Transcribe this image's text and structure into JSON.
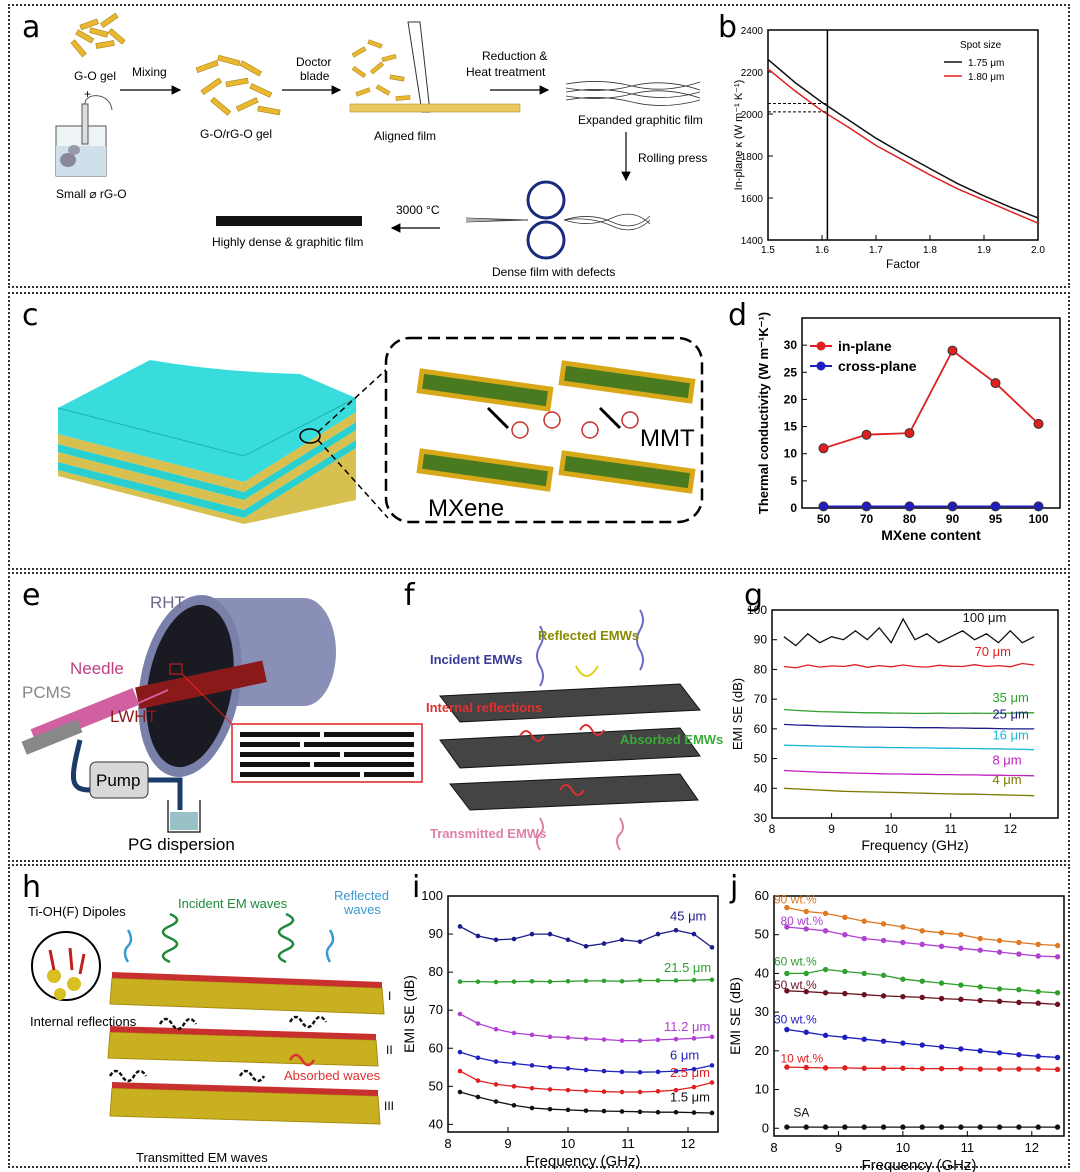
{
  "panels": {
    "a": {
      "label": "a",
      "go_gel": "G-O gel",
      "plus": "+",
      "small_rgo": "Small ⌀ rG-O",
      "mixing": "Mixing",
      "gorgo_gel": "G-O/rG-O gel",
      "doctor_blade_1": "Doctor",
      "doctor_blade_2": "blade",
      "aligned_film": "Aligned film",
      "reduction_1": "Reduction &",
      "reduction_2": "Heat treatment",
      "expanded_film": "Expanded graphitic film",
      "rolling_press": "Rolling press",
      "dense_defects": "Dense film with defects",
      "temp": "3000 °C",
      "dense_graphitic": "Highly dense & graphitic film"
    },
    "c": {
      "label": "c",
      "mxene": "MXene",
      "mmt": "MMT"
    },
    "e": {
      "label": "e",
      "rht": "RHT",
      "needle": "Needle",
      "pcms": "PCMS",
      "lwht": "LWHT",
      "pump": "Pump",
      "pg_dispersion": "PG dispersion"
    },
    "f": {
      "label": "f",
      "incident": "Incident EMWs",
      "reflected": "Reflected EMWs",
      "internal": "Internal reflections",
      "absorbed": "Absorbed EMWs",
      "transmitted": "Transmitted EMWs"
    },
    "h": {
      "label": "h",
      "dipoles": "Ti-OH(F) Dipoles",
      "incident": "Incident EM waves",
      "reflected_1": "Reflected",
      "reflected_2": "waves",
      "internal": "Internal reflections",
      "absorbed": "Absorbed waves",
      "transmitted": "Transmitted EM waves",
      "layer_1": "I",
      "layer_2": "II",
      "layer_3": "III"
    }
  },
  "colors": {
    "black": "#111111",
    "red": "#e02020",
    "blue": "#1f1fbf",
    "green": "#2ea02e",
    "cyan": "#1ab8d8",
    "magenta": "#c020c0",
    "olive": "#7a7a00",
    "orange": "#e07820",
    "purple": "#b040d0",
    "maroon": "#6a1020",
    "navy": "#1a1a8a"
  },
  "chart_data": [
    {
      "id": "b",
      "label": "b",
      "type": "line",
      "xlabel": "Factor",
      "ylabel": "In-plane κ (W m⁻¹ K⁻¹)",
      "xlim": [
        1.5,
        2.0
      ],
      "ylim": [
        1400,
        2400
      ],
      "xticks": [
        "1.5",
        "1.6",
        "1.7",
        "1.8",
        "1.9",
        "2.0"
      ],
      "yticks": [
        "1400",
        "1600",
        "1800",
        "2000",
        "2200",
        "2400"
      ],
      "legend_title": "Spot size",
      "vline": 1.61,
      "hlines": [
        2050,
        2010
      ],
      "x": [
        1.5,
        1.55,
        1.6,
        1.65,
        1.7,
        1.75,
        1.8,
        1.85,
        1.9,
        1.95,
        2.0
      ],
      "series": [
        {
          "name": "1.75 μm",
          "color": "#111111",
          "values": [
            2260,
            2150,
            2055,
            1970,
            1885,
            1810,
            1740,
            1670,
            1610,
            1555,
            1505
          ]
        },
        {
          "name": "1.80 μm",
          "color": "#e02020",
          "values": [
            2215,
            2110,
            2015,
            1935,
            1850,
            1780,
            1710,
            1645,
            1590,
            1535,
            1480
          ]
        }
      ]
    },
    {
      "id": "d",
      "label": "d",
      "type": "line",
      "xlabel": "MXene content",
      "ylabel": "Thermal conductivity (W m⁻¹K⁻¹)",
      "ylim": [
        0,
        35
      ],
      "categories": [
        "50",
        "70",
        "80",
        "90",
        "95",
        "100"
      ],
      "yticks": [
        "0",
        "5",
        "10",
        "15",
        "20",
        "25",
        "30"
      ],
      "series": [
        {
          "name": "in-plane",
          "color": "#e02020",
          "values": [
            11.0,
            13.5,
            13.8,
            29.0,
            23.0,
            15.5
          ]
        },
        {
          "name": "cross-plane",
          "color": "#1f1fbf",
          "values": [
            0.3,
            0.3,
            0.3,
            0.3,
            0.3,
            0.3
          ]
        }
      ]
    },
    {
      "id": "g",
      "label": "g",
      "type": "line",
      "xlabel": "Frequency (GHz)",
      "ylabel": "EMI SE (dB)",
      "xlim": [
        8,
        12.8
      ],
      "ylim": [
        30,
        100
      ],
      "xticks": [
        "8",
        "9",
        "10",
        "11",
        "12"
      ],
      "yticks": [
        "30",
        "40",
        "50",
        "60",
        "70",
        "80",
        "90",
        "100"
      ],
      "x": [
        8.2,
        8.4,
        8.6,
        8.8,
        9.0,
        9.2,
        9.4,
        9.6,
        9.8,
        10.0,
        10.2,
        10.4,
        10.6,
        10.8,
        11.0,
        11.2,
        11.4,
        11.6,
        11.8,
        12.0,
        12.2,
        12.4
      ],
      "series": [
        {
          "name": "100 μm",
          "color": "#111111",
          "values": [
            91,
            88,
            92,
            89,
            91,
            90,
            93,
            90,
            94,
            89,
            97,
            90,
            92,
            89,
            91,
            93,
            90,
            92,
            89,
            93,
            89,
            91
          ]
        },
        {
          "name": "70 μm",
          "color": "#e02020",
          "values": [
            81,
            80.5,
            81.5,
            80.8,
            81.2,
            81,
            81.6,
            80.7,
            81.3,
            80.9,
            81.5,
            81,
            80.8,
            81.4,
            81.1,
            81,
            81.6,
            81,
            81.3,
            80.9,
            82,
            81.5
          ]
        },
        {
          "name": "35 μm",
          "color": "#2ea02e",
          "values": [
            66.5,
            66.2,
            66,
            65.8,
            65.7,
            65.6,
            65.5,
            65.4,
            65.4,
            65.3,
            65.3,
            65.2,
            65.2,
            65.3,
            65.2,
            65.2,
            65.3,
            65.2,
            65.3,
            65.3,
            65.4,
            65.4
          ]
        },
        {
          "name": "25 μm",
          "color": "#1a1a8a",
          "values": [
            61.5,
            61.3,
            61.2,
            61,
            60.9,
            60.8,
            60.7,
            60.6,
            60.6,
            60.5,
            60.5,
            60.4,
            60.4,
            60.4,
            60.3,
            60.3,
            60.2,
            60.2,
            60.1,
            60,
            60,
            60
          ]
        },
        {
          "name": "16 μm",
          "color": "#1ab8d8",
          "values": [
            54.5,
            54.4,
            54.3,
            54.2,
            54.1,
            54,
            53.9,
            53.8,
            53.8,
            53.7,
            53.7,
            53.6,
            53.6,
            53.5,
            53.5,
            53.4,
            53.4,
            53.3,
            53.3,
            53.2,
            53.1,
            53
          ]
        },
        {
          "name": "8 μm",
          "color": "#c020c0",
          "values": [
            46,
            45.8,
            45.6,
            45.4,
            45.3,
            45.2,
            45.1,
            45,
            44.9,
            44.8,
            44.8,
            44.7,
            44.7,
            44.6,
            44.6,
            44.5,
            44.5,
            44.4,
            44.4,
            44.3,
            44.3,
            44.2
          ]
        },
        {
          "name": "4 μm",
          "color": "#7a7a00",
          "values": [
            40,
            39.8,
            39.6,
            39.4,
            39.2,
            39,
            38.9,
            38.8,
            38.7,
            38.6,
            38.5,
            38.4,
            38.3,
            38.2,
            38.1,
            38,
            38,
            37.9,
            37.8,
            37.7,
            37.6,
            37.5
          ]
        }
      ]
    },
    {
      "id": "i",
      "label": "i",
      "type": "line",
      "xlabel": "Frequency (GHz)",
      "ylabel": "EMI SE (dB)",
      "xlim": [
        8,
        12.5
      ],
      "ylim": [
        38,
        100
      ],
      "xticks": [
        "8",
        "9",
        "10",
        "11",
        "12"
      ],
      "yticks": [
        "40",
        "50",
        "60",
        "70",
        "80",
        "90",
        "100"
      ],
      "x": [
        8.2,
        8.5,
        8.8,
        9.1,
        9.4,
        9.7,
        10.0,
        10.3,
        10.6,
        10.9,
        11.2,
        11.5,
        11.8,
        12.1,
        12.4
      ],
      "series": [
        {
          "name": "45 μm",
          "color": "#1a1a8a",
          "values": [
            92,
            89.5,
            88.5,
            88.7,
            90,
            90,
            88.5,
            86.8,
            87.5,
            88.5,
            88,
            90,
            91,
            90,
            86.5
          ]
        },
        {
          "name": "21.5 μm",
          "color": "#2ea02e",
          "values": [
            77.5,
            77.5,
            77.4,
            77.5,
            77.6,
            77.5,
            77.6,
            77.7,
            77.7,
            77.6,
            77.8,
            77.8,
            77.8,
            77.9,
            78
          ]
        },
        {
          "name": "11.2 μm",
          "color": "#b040d0",
          "values": [
            69,
            66.5,
            65,
            64,
            63.5,
            63,
            62.8,
            62.5,
            62.3,
            62,
            62,
            62.2,
            62.4,
            62.6,
            63
          ]
        },
        {
          "name": "6 μm",
          "color": "#1f1fbf",
          "values": [
            59,
            57.5,
            56.5,
            56,
            55.5,
            55,
            54.7,
            54.3,
            54,
            53.8,
            53.7,
            53.8,
            54,
            54.5,
            55.5
          ]
        },
        {
          "name": "2.5 μm",
          "color": "#e02020",
          "values": [
            54,
            51.5,
            50.5,
            50,
            49.5,
            49.2,
            49,
            48.8,
            48.6,
            48.5,
            48.5,
            48.7,
            49,
            49.8,
            51
          ]
        },
        {
          "name": "1.5 μm",
          "color": "#111111",
          "values": [
            48.5,
            47.2,
            46,
            45,
            44.3,
            44,
            43.8,
            43.6,
            43.5,
            43.4,
            43.3,
            43.2,
            43.2,
            43.1,
            43
          ]
        }
      ]
    },
    {
      "id": "j",
      "label": "j",
      "type": "line",
      "xlabel": "Frequency (GHz)",
      "ylabel": "EMI SE (dB)",
      "xlim": [
        8,
        12.5
      ],
      "ylim": [
        -2,
        60
      ],
      "xticks": [
        "8",
        "9",
        "10",
        "11",
        "12"
      ],
      "yticks": [
        "0",
        "10",
        "20",
        "30",
        "40",
        "50",
        "60"
      ],
      "x": [
        8.2,
        8.5,
        8.8,
        9.1,
        9.4,
        9.7,
        10.0,
        10.3,
        10.6,
        10.9,
        11.2,
        11.5,
        11.8,
        12.1,
        12.4
      ],
      "series": [
        {
          "name": "90 wt.%",
          "color": "#e07820",
          "values": [
            57,
            56,
            55.5,
            54.5,
            53.5,
            52.8,
            52,
            51,
            50.5,
            50,
            49,
            48.5,
            48,
            47.5,
            47.2
          ]
        },
        {
          "name": "80 wt.%",
          "color": "#b040d0",
          "values": [
            52,
            51.5,
            51,
            50,
            49,
            48.5,
            48,
            47.5,
            47,
            46.5,
            46,
            45.5,
            45,
            44.5,
            44.3
          ]
        },
        {
          "name": "60 wt.%",
          "color": "#2ea02e",
          "values": [
            40,
            40,
            41,
            40.5,
            40,
            39.5,
            38.5,
            38,
            37.5,
            37,
            36.5,
            36,
            35.8,
            35.3,
            35
          ]
        },
        {
          "name": "50 wt.%",
          "color": "#6a1020",
          "values": [
            35.5,
            35.3,
            35,
            34.8,
            34.5,
            34.2,
            34,
            33.8,
            33.5,
            33.3,
            33,
            32.8,
            32.5,
            32.3,
            32
          ]
        },
        {
          "name": "30 wt.%",
          "color": "#1f1fbf",
          "values": [
            25.5,
            24.8,
            24,
            23.5,
            23,
            22.5,
            22,
            21.5,
            21,
            20.5,
            20,
            19.5,
            19,
            18.6,
            18.3
          ]
        },
        {
          "name": "10 wt.%",
          "color": "#e02020",
          "values": [
            15.8,
            15.7,
            15.6,
            15.6,
            15.5,
            15.5,
            15.5,
            15.4,
            15.4,
            15.4,
            15.3,
            15.3,
            15.3,
            15.3,
            15.2
          ]
        },
        {
          "name": "SA",
          "color": "#111111",
          "values": [
            0.3,
            0.3,
            0.3,
            0.3,
            0.3,
            0.3,
            0.3,
            0.3,
            0.3,
            0.3,
            0.3,
            0.3,
            0.3,
            0.3,
            0.3
          ]
        }
      ]
    }
  ]
}
